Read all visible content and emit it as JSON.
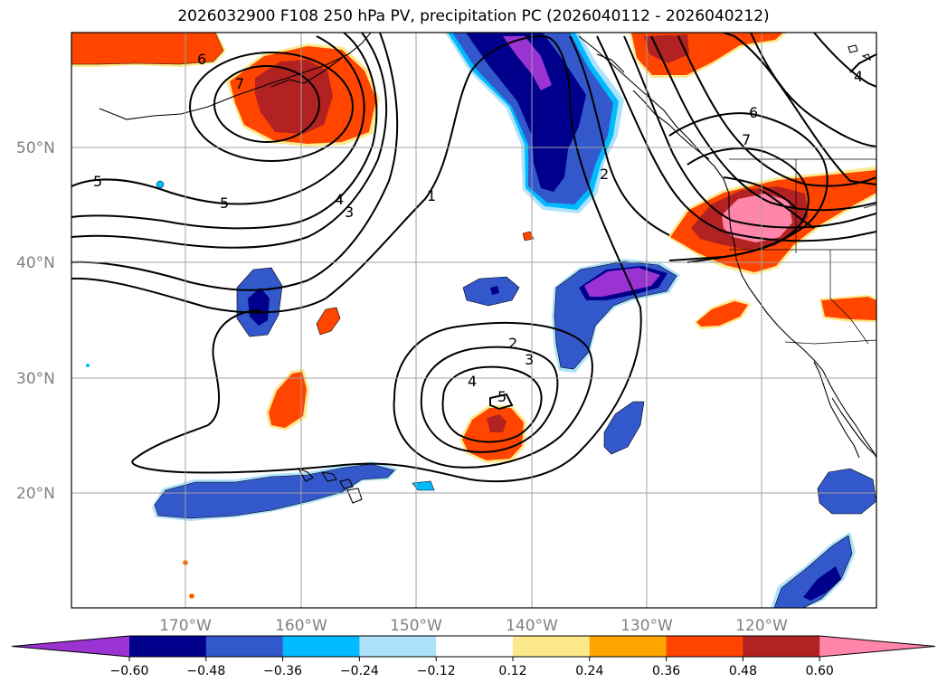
{
  "title": "2026032900 F108 250 hPa PV, precipitation PC (2026040112 - 2026040212)",
  "lat_labels": [
    "50°N",
    "40°N",
    "30°N",
    "20°N"
  ],
  "lon_labels": [
    "170°W",
    "160°W",
    "150°W",
    "140°W",
    "130°W",
    "120°W"
  ],
  "contour_labels": [
    "6",
    "7",
    "5",
    "5",
    "4",
    "3",
    "1",
    "2",
    "6",
    "7",
    "2",
    "3",
    "4",
    "5",
    "4"
  ],
  "colorbar": {
    "ticks": [
      "−0.60",
      "−0.48",
      "−0.36",
      "−0.24",
      "−0.12",
      "0.12",
      "0.24",
      "0.36",
      "0.48",
      "0.60"
    ],
    "colors": [
      "#9b32d2",
      "#00008c",
      "#3358cc",
      "#00bcff",
      "#aee2fa",
      "#ffffff",
      "#fde98c",
      "#ffa500",
      "#ff4500",
      "#b22222",
      "#ff85aa"
    ]
  }
}
